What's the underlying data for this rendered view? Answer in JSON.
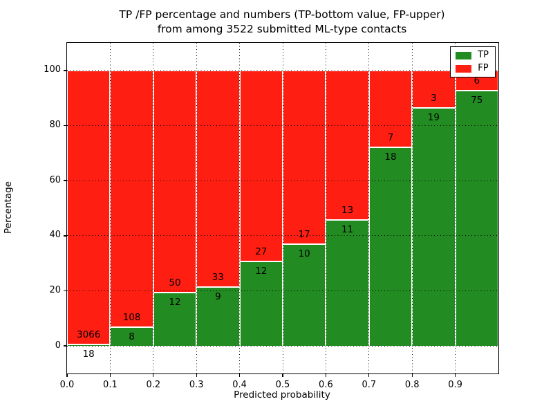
{
  "chart_data": {
    "type": "bar",
    "subtype": "stacked-percentage",
    "title": "TP /FP percentage and numbers (TP-bottom value, FP-upper) from among 3522 submitted ML-type contacts",
    "title_line1": "TP /FP percentage and numbers (TP-bottom value, FP-upper)",
    "title_line2": "from among 3522 submitted ML-type contacts",
    "xlabel": "Predicted probability",
    "ylabel": "Percentage",
    "total_contacts": 3522,
    "xlim": [
      0.0,
      1.0
    ],
    "ylim": [
      -10,
      110
    ],
    "x_tick_labels": [
      "0.0",
      "0.1",
      "0.2",
      "0.3",
      "0.4",
      "0.5",
      "0.6",
      "0.7",
      "0.8",
      "0.9"
    ],
    "y_ticks": [
      0,
      20,
      40,
      60,
      80,
      100
    ],
    "y_tick_labels": [
      "0",
      "20",
      "40",
      "60",
      "80",
      "100"
    ],
    "grid": true,
    "grid_style": "dotted",
    "legend_position": "upper-right",
    "categories": [
      "0.0-0.1",
      "0.1-0.2",
      "0.2-0.3",
      "0.3-0.4",
      "0.4-0.5",
      "0.5-0.6",
      "0.6-0.7",
      "0.7-0.8",
      "0.8-0.9",
      "0.9-1.0"
    ],
    "series": [
      {
        "name": "TP",
        "color": "#228b22",
        "counts": [
          18,
          8,
          12,
          9,
          12,
          10,
          11,
          18,
          19,
          75
        ],
        "percent": [
          0.58,
          6.9,
          19.35,
          21.43,
          30.77,
          37.04,
          45.83,
          72.0,
          86.36,
          92.59
        ]
      },
      {
        "name": "FP",
        "color": "#ff1e12",
        "counts": [
          3066,
          108,
          50,
          33,
          27,
          17,
          13,
          7,
          3,
          6
        ],
        "percent": [
          99.42,
          93.1,
          80.65,
          78.57,
          69.23,
          62.96,
          54.17,
          28.0,
          13.64,
          7.41
        ]
      }
    ]
  }
}
